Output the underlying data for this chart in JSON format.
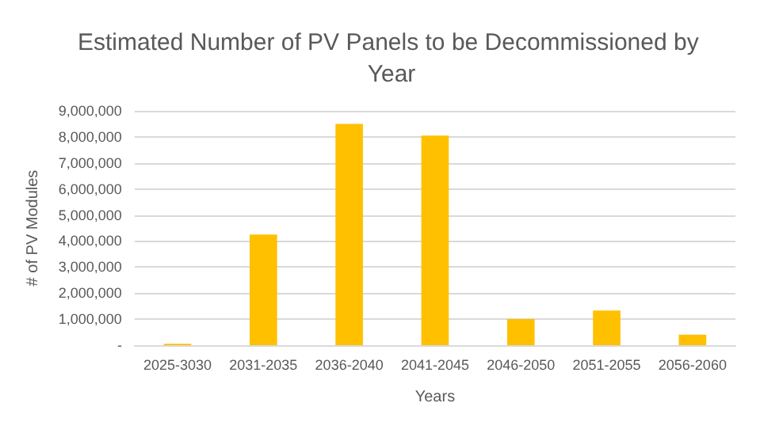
{
  "chart_data": {
    "type": "bar",
    "title": "Estimated Number of PV Panels to be Decommissioned by Year",
    "xlabel": "Years",
    "ylabel": "# of PV Modules",
    "categories": [
      "2025-3030",
      "2031-2035",
      "2036-2040",
      "2041-2045",
      "2046-2050",
      "2051-2055",
      "2056-2060"
    ],
    "values": [
      50000,
      4250000,
      8500000,
      8050000,
      1000000,
      1330000,
      400000
    ],
    "color": "#ffc000",
    "ylim": [
      0,
      9000000
    ],
    "yticks": [
      {
        "value": 0,
        "label": "-"
      },
      {
        "value": 1000000,
        "label": "1,000,000"
      },
      {
        "value": 2000000,
        "label": "2,000,000"
      },
      {
        "value": 3000000,
        "label": "3,000,000"
      },
      {
        "value": 4000000,
        "label": "4,000,000"
      },
      {
        "value": 5000000,
        "label": "5,000,000"
      },
      {
        "value": 6000000,
        "label": "6,000,000"
      },
      {
        "value": 7000000,
        "label": "7,000,000"
      },
      {
        "value": 8000000,
        "label": "8,000,000"
      },
      {
        "value": 9000000,
        "label": "9,000,000"
      }
    ],
    "grid": "y"
  }
}
